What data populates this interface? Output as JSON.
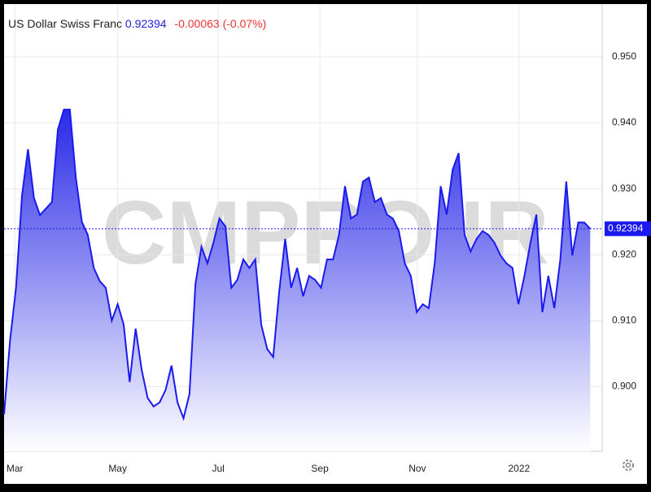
{
  "header": {
    "title": "US Dollar Swiss Franc",
    "price": 0.92394,
    "change": "-0.00063 (-0.07%)"
  },
  "watermark": "CMPRO.IR",
  "chart_data": {
    "type": "area",
    "color": "#1a1aee",
    "grid": true,
    "values": [
      0.8958,
      0.907,
      0.915,
      0.929,
      0.936,
      0.9286,
      0.926,
      0.927,
      0.928,
      0.939,
      0.942,
      0.942,
      0.9317,
      0.925,
      0.923,
      0.918,
      0.916,
      0.915,
      0.91,
      0.9125,
      0.9094,
      0.9007,
      0.9088,
      0.9026,
      0.8983,
      0.897,
      0.8976,
      0.8995,
      0.9032,
      0.8976,
      0.8952,
      0.8989,
      0.9156,
      0.9212,
      0.9187,
      0.9218,
      0.9255,
      0.9243,
      0.915,
      0.9162,
      0.9193,
      0.918,
      0.9193,
      0.9094,
      0.9057,
      0.9045,
      0.9144,
      0.9224,
      0.915,
      0.918,
      0.9137,
      0.9168,
      0.9162,
      0.915,
      0.9193,
      0.9193,
      0.923,
      0.9304,
      0.9255,
      0.9261,
      0.9311,
      0.9317,
      0.928,
      0.9286,
      0.9261,
      0.9255,
      0.9236,
      0.9187,
      0.9168,
      0.9113,
      0.9125,
      0.9119,
      0.9187,
      0.9304,
      0.9261,
      0.9329,
      0.9354,
      0.923,
      0.9205,
      0.9224,
      0.9236,
      0.923,
      0.9218,
      0.9199,
      0.9187,
      0.918,
      0.9125,
      0.9168,
      0.9218,
      0.9261,
      0.9113,
      0.9168,
      0.9119,
      0.9193,
      0.9311,
      0.9199,
      0.9249,
      0.9249,
      0.92394
    ],
    "xlim": [
      0,
      100
    ],
    "xticks": [
      {
        "value": 1.8,
        "label": "Mar"
      },
      {
        "value": 19,
        "label": "May"
      },
      {
        "value": 35.8,
        "label": "Jul"
      },
      {
        "value": 52.8,
        "label": "Sep"
      },
      {
        "value": 69.1,
        "label": "Nov"
      },
      {
        "value": 86.1,
        "label": "2022"
      }
    ],
    "ylim": [
      0.8902,
      0.958
    ],
    "yticks": [
      {
        "value": 0.9,
        "label": "0.900"
      },
      {
        "value": 0.91,
        "label": "0.910"
      },
      {
        "value": 0.92,
        "label": "0.920"
      },
      {
        "value": 0.93,
        "label": "0.930"
      },
      {
        "value": 0.94,
        "label": "0.940"
      },
      {
        "value": 0.95,
        "label": "0.950"
      }
    ]
  }
}
